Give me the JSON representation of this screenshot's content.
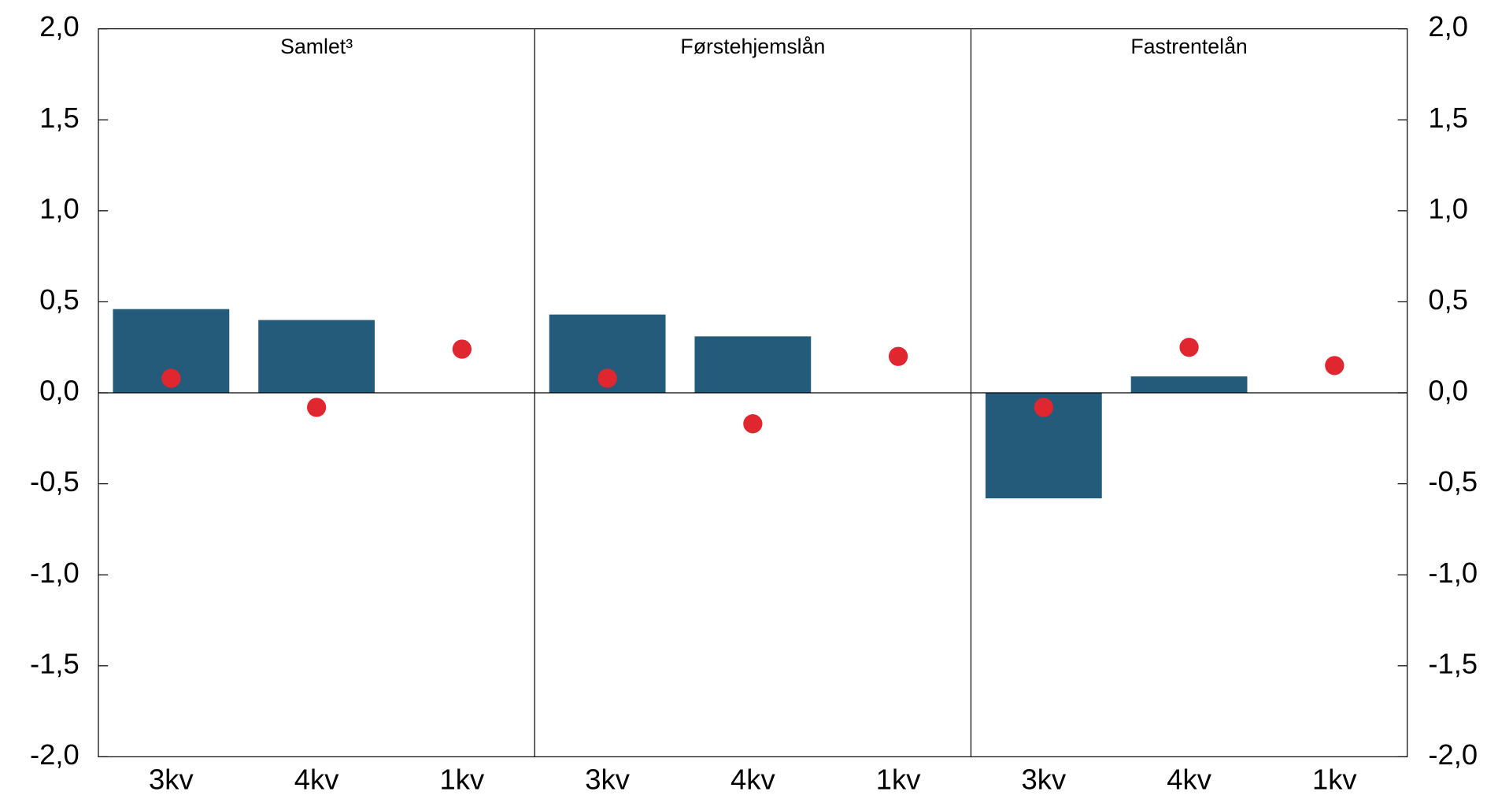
{
  "chart_data": {
    "type": "bar",
    "panels": [
      "Samlet³",
      "Førstehjemslån",
      "Fastrentelån"
    ],
    "categories": [
      "3kv",
      "4kv",
      "1kv",
      "3kv",
      "4kv",
      "1kv",
      "3kv",
      "4kv",
      "1kv"
    ],
    "series": [
      {
        "type": "bar",
        "color": "#245b7a",
        "values": [
          0.46,
          0.4,
          null,
          0.43,
          0.31,
          null,
          -0.58,
          0.09,
          null
        ]
      },
      {
        "type": "scatter",
        "color": "#e0262f",
        "values": [
          0.08,
          -0.08,
          0.24,
          0.08,
          -0.17,
          0.2,
          -0.08,
          0.25,
          0.15
        ]
      }
    ],
    "ylim": [
      -2,
      2
    ],
    "yticks": [
      {
        "value": -2,
        "label": "-2,0"
      },
      {
        "value": -1.5,
        "label": "-1,5"
      },
      {
        "value": -1,
        "label": "-1,0"
      },
      {
        "value": -0.5,
        "label": "-0,5"
      },
      {
        "value": 0,
        "label": "0,0"
      },
      {
        "value": 0.5,
        "label": "0,5"
      },
      {
        "value": 1,
        "label": "1,0"
      },
      {
        "value": 1.5,
        "label": "1,5"
      },
      {
        "value": 2,
        "label": "2,0"
      }
    ],
    "y2lim": [
      -2,
      2
    ],
    "y2ticks": [
      {
        "value": -2,
        "label": "-2,0"
      },
      {
        "value": -1.5,
        "label": "-1,5"
      },
      {
        "value": -1,
        "label": "-1,0"
      },
      {
        "value": -0.5,
        "label": "-0,5"
      },
      {
        "value": 0,
        "label": "0,0"
      },
      {
        "value": 0.5,
        "label": "0,5"
      },
      {
        "value": 1,
        "label": "1,0"
      },
      {
        "value": 1.5,
        "label": "1,5"
      },
      {
        "value": 2,
        "label": "2,0"
      }
    ]
  }
}
